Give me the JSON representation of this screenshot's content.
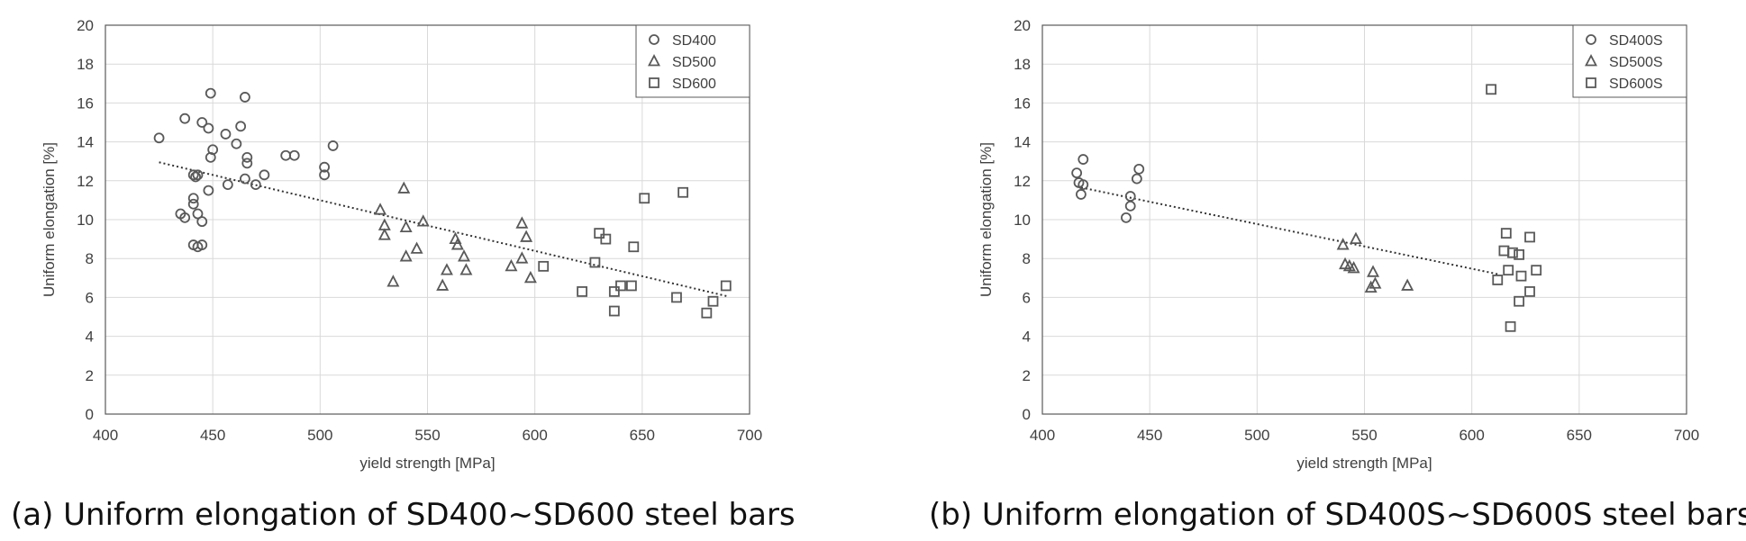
{
  "chart_data": [
    {
      "type": "scatter",
      "caption": "(a) Uniform elongation of SD400~SD600 steel bars",
      "xlabel": "yield strength [MPa]",
      "ylabel": "Uniform elongation [%]",
      "xlim": [
        400,
        700
      ],
      "ylim": [
        0,
        20
      ],
      "xticks": [
        400,
        450,
        500,
        550,
        600,
        650,
        700
      ],
      "yticks": [
        0,
        2,
        4,
        6,
        8,
        10,
        12,
        14,
        16,
        18,
        20
      ],
      "grid": true,
      "legend_position": "top-right",
      "trendline": {
        "style": "dotted",
        "x": [
          425,
          690
        ],
        "y": [
          12.95,
          6.05
        ]
      },
      "series": [
        {
          "name": "SD400",
          "marker": "circle",
          "points": [
            [
              425,
              14.2
            ],
            [
              437,
              15.2
            ],
            [
              445,
              15.0
            ],
            [
              449,
              16.5
            ],
            [
              448,
              14.7
            ],
            [
              456,
              14.4
            ],
            [
              463,
              14.8
            ],
            [
              465,
              16.3
            ],
            [
              461,
              13.9
            ],
            [
              450,
              13.6
            ],
            [
              449,
              13.2
            ],
            [
              466,
              13.2
            ],
            [
              466,
              12.9
            ],
            [
              443,
              12.3
            ],
            [
              442,
              12.2
            ],
            [
              441,
              12.3
            ],
            [
              457,
              11.8
            ],
            [
              465,
              12.1
            ],
            [
              470,
              11.8
            ],
            [
              474,
              12.3
            ],
            [
              484,
              13.3
            ],
            [
              488,
              13.3
            ],
            [
              502,
              12.7
            ],
            [
              502,
              12.3
            ],
            [
              506,
              13.8
            ],
            [
              448,
              11.5
            ],
            [
              441,
              11.1
            ],
            [
              441,
              10.8
            ],
            [
              435,
              10.3
            ],
            [
              437,
              10.1
            ],
            [
              443,
              10.3
            ],
            [
              445,
              9.9
            ],
            [
              441,
              8.7
            ],
            [
              443,
              8.6
            ],
            [
              445,
              8.7
            ]
          ]
        },
        {
          "name": "SD500",
          "marker": "triangle",
          "points": [
            [
              528,
              10.5
            ],
            [
              530,
              9.2
            ],
            [
              530,
              9.7
            ],
            [
              539,
              11.6
            ],
            [
              540,
              9.6
            ],
            [
              540,
              8.1
            ],
            [
              548,
              9.9
            ],
            [
              545,
              8.5
            ],
            [
              534,
              6.8
            ],
            [
              557,
              6.6
            ],
            [
              559,
              7.4
            ],
            [
              563,
              9.0
            ],
            [
              564,
              8.7
            ],
            [
              567,
              8.1
            ],
            [
              568,
              7.4
            ],
            [
              589,
              7.6
            ],
            [
              594,
              9.8
            ],
            [
              596,
              9.1
            ],
            [
              594,
              8.0
            ],
            [
              598,
              7.0
            ]
          ]
        },
        {
          "name": "SD600",
          "marker": "square",
          "points": [
            [
              604,
              7.6
            ],
            [
              622,
              6.3
            ],
            [
              628,
              7.8
            ],
            [
              630,
              9.3
            ],
            [
              633,
              9.0
            ],
            [
              637,
              6.3
            ],
            [
              640,
              6.6
            ],
            [
              645,
              6.6
            ],
            [
              646,
              8.6
            ],
            [
              651,
              11.1
            ],
            [
              669,
              11.4
            ],
            [
              666,
              6.0
            ],
            [
              637,
              5.3
            ],
            [
              680,
              5.2
            ],
            [
              683,
              5.8
            ],
            [
              689,
              6.6
            ]
          ]
        }
      ]
    },
    {
      "type": "scatter",
      "caption": "(b) Uniform elongation of SD400S~SD600S steel bars",
      "xlabel": "yield strength [MPa]",
      "ylabel": "Uniform elongation [%]",
      "xlim": [
        400,
        700
      ],
      "ylim": [
        0,
        20
      ],
      "xticks": [
        400,
        450,
        500,
        550,
        600,
        650,
        700
      ],
      "yticks": [
        0,
        2,
        4,
        6,
        8,
        10,
        12,
        14,
        16,
        18,
        20
      ],
      "grid": true,
      "legend_position": "top-right",
      "trendline": {
        "style": "dotted",
        "x": [
          416,
          612
        ],
        "y": [
          11.7,
          7.2
        ]
      },
      "series": [
        {
          "name": "SD400S",
          "marker": "circle",
          "points": [
            [
              416,
              12.4
            ],
            [
              419,
              13.1
            ],
            [
              417,
              11.9
            ],
            [
              419,
              11.8
            ],
            [
              418,
              11.3
            ],
            [
              441,
              11.2
            ],
            [
              441,
              10.7
            ],
            [
              439,
              10.1
            ],
            [
              445,
              12.6
            ],
            [
              444,
              12.1
            ]
          ]
        },
        {
          "name": "SD500S",
          "marker": "triangle",
          "points": [
            [
              540,
              8.7
            ],
            [
              546,
              9.0
            ],
            [
              541,
              7.7
            ],
            [
              543,
              7.6
            ],
            [
              545,
              7.5
            ],
            [
              554,
              7.3
            ],
            [
              555,
              6.7
            ],
            [
              553,
              6.5
            ],
            [
              570,
              6.6
            ]
          ]
        },
        {
          "name": "SD600S",
          "marker": "square",
          "points": [
            [
              609,
              16.7
            ],
            [
              616,
              9.3
            ],
            [
              627,
              9.1
            ],
            [
              615,
              8.4
            ],
            [
              619,
              8.3
            ],
            [
              622,
              8.2
            ],
            [
              612,
              6.9
            ],
            [
              617,
              7.4
            ],
            [
              623,
              7.1
            ],
            [
              630,
              7.4
            ],
            [
              627,
              6.3
            ],
            [
              622,
              5.8
            ],
            [
              618,
              4.5
            ]
          ]
        }
      ]
    }
  ]
}
